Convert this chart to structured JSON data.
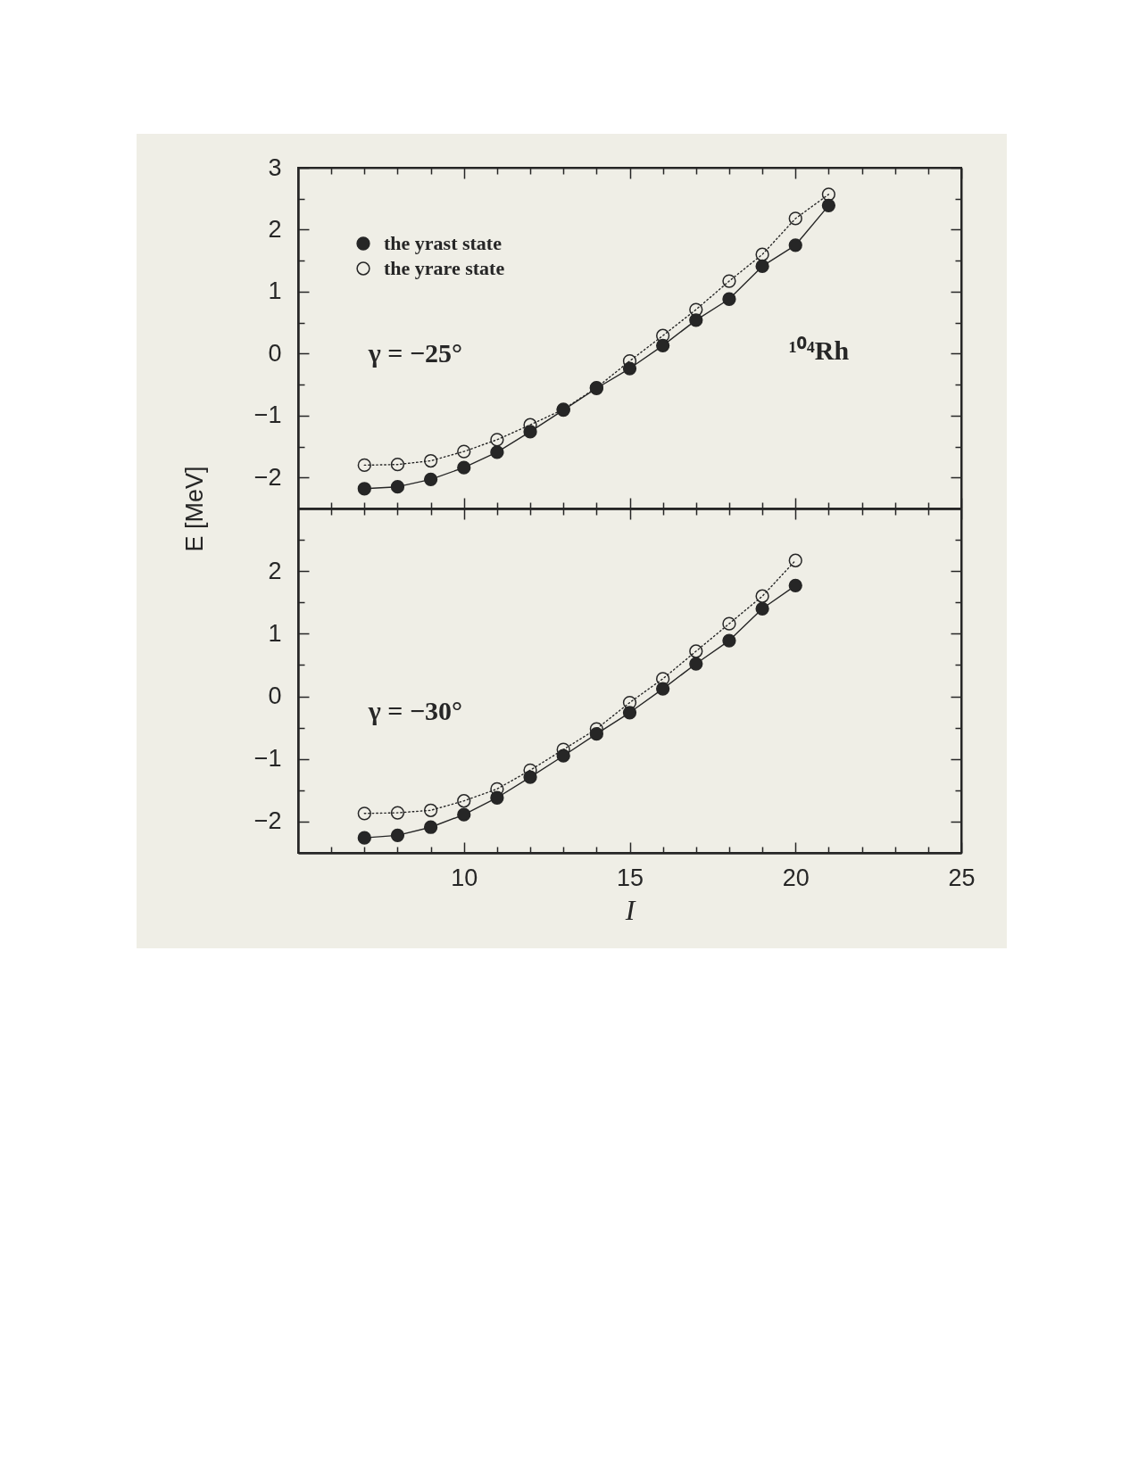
{
  "chart_data": [
    {
      "type": "line",
      "ylabel": "E [MeV]",
      "marker": "circle",
      "legend": "top left",
      "tick_labels": "y",
      "annotations": [
        "γ = −25°",
        "¹⁰⁴Rh"
      ],
      "xlim": [
        5,
        25
      ],
      "ylim": [
        -2.5,
        3
      ],
      "xticks": [
        {
          "value": 6,
          "label": null
        },
        {
          "value": 7,
          "label": null
        },
        {
          "value": 8,
          "label": null
        },
        {
          "value": 9,
          "label": null
        },
        10,
        {
          "value": 11,
          "label": null
        },
        {
          "value": 12,
          "label": null
        },
        {
          "value": 13,
          "label": null
        },
        {
          "value": 14,
          "label": null
        },
        15,
        {
          "value": 16,
          "label": null
        },
        {
          "value": 17,
          "label": null
        },
        {
          "value": 18,
          "label": null
        },
        {
          "value": 19,
          "label": null
        },
        20,
        {
          "value": 21,
          "label": null
        },
        {
          "value": 22,
          "label": null
        },
        {
          "value": 23,
          "label": null
        },
        {
          "value": 24,
          "label": null
        },
        25
      ],
      "yticks": [
        -2,
        {
          "value": -1.5,
          "label": null
        },
        -1,
        {
          "value": -0.5,
          "label": null
        },
        0,
        {
          "value": 0.5,
          "label": null
        },
        1,
        {
          "value": 1.5,
          "label": null
        },
        2,
        {
          "value": 2.5,
          "label": null
        },
        3
      ],
      "x": [
        7,
        8,
        9,
        10,
        11,
        12,
        13,
        14,
        15,
        16,
        17,
        18,
        19,
        20,
        21
      ],
      "series": [
        {
          "name": "the yrast state",
          "color": "#262626",
          "line_style": "solid",
          "values": [
            -2.18,
            -2.15,
            -2.03,
            -1.84,
            -1.59,
            -1.26,
            -0.91,
            -0.56,
            -0.24,
            0.13,
            0.54,
            0.88,
            1.41,
            1.75,
            2.39
          ]
        },
        {
          "name": "the yrare state",
          "color": "#262626",
          "line_style": "dotted",
          "values": [
            -1.8,
            -1.79,
            -1.73,
            -1.58,
            -1.39,
            -1.15,
            -0.9,
            -0.55,
            -0.12,
            0.29,
            0.71,
            1.17,
            1.6,
            2.18,
            2.57
          ]
        }
      ]
    },
    {
      "type": "line",
      "xlabel": "I",
      "marker": "circle",
      "annotations": [
        "γ = −30°"
      ],
      "xlim": [
        5,
        25
      ],
      "ylim": [
        -2.5,
        3
      ],
      "xticks": [
        {
          "value": 6,
          "label": null
        },
        {
          "value": 7,
          "label": null
        },
        {
          "value": 8,
          "label": null
        },
        {
          "value": 9,
          "label": null
        },
        10,
        {
          "value": 11,
          "label": null
        },
        {
          "value": 12,
          "label": null
        },
        {
          "value": 13,
          "label": null
        },
        {
          "value": 14,
          "label": null
        },
        15,
        {
          "value": 16,
          "label": null
        },
        {
          "value": 17,
          "label": null
        },
        {
          "value": 18,
          "label": null
        },
        {
          "value": 19,
          "label": null
        },
        20,
        {
          "value": 21,
          "label": null
        },
        {
          "value": 22,
          "label": null
        },
        {
          "value": 23,
          "label": null
        },
        {
          "value": 24,
          "label": null
        },
        25
      ],
      "yticks": [
        -2,
        {
          "value": -1.5,
          "label": null
        },
        -1,
        {
          "value": -0.5,
          "label": null
        },
        0,
        {
          "value": 0.5,
          "label": null
        },
        1,
        {
          "value": 1.5,
          "label": null
        },
        2,
        {
          "value": 2.5,
          "label": null
        }
      ],
      "x": [
        7,
        8,
        9,
        10,
        11,
        12,
        13,
        14,
        15,
        16,
        17,
        18,
        19,
        20
      ],
      "series": [
        {
          "color": "#262626",
          "line_style": "solid",
          "values": [
            -2.26,
            -2.22,
            -2.09,
            -1.89,
            -1.62,
            -1.29,
            -0.95,
            -0.6,
            -0.26,
            0.12,
            0.52,
            0.89,
            1.4,
            1.77
          ]
        },
        {
          "color": "#262626",
          "line_style": "dotted",
          "values": [
            -1.87,
            -1.86,
            -1.82,
            -1.67,
            -1.48,
            -1.18,
            -0.85,
            -0.52,
            -0.1,
            0.28,
            0.72,
            1.16,
            1.6,
            2.17
          ]
        }
      ]
    }
  ]
}
